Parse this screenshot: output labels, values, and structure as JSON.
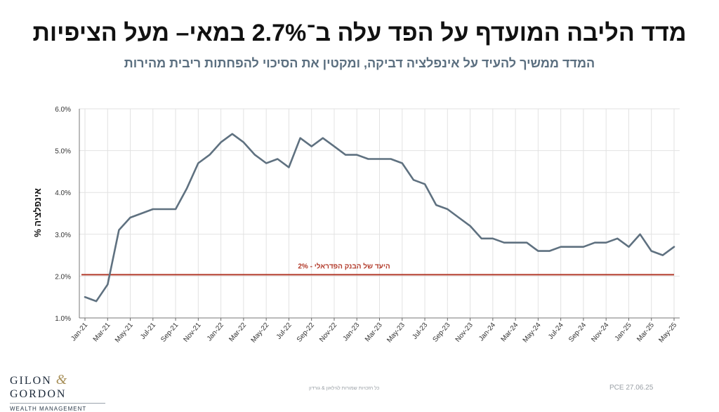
{
  "header": {
    "title": "מדד הליבה המועדף על הפד עלה ב־2.7% במאי– מעל הציפיות",
    "subtitle": "המדד ממשיך להעיד על אינפלציה דביקה, ומקטין את הסיכוי להפחתות ריבית מהירות"
  },
  "footer": {
    "logo_left": "GILON",
    "logo_amp": "&",
    "logo_right": "GORDON",
    "logo_sub": "WEALTH MANAGEMENT",
    "copyright": "כל הזכויות שמורות לגילאון & גורדון",
    "source": "PCE 27.06.25"
  },
  "colors": {
    "line": "#5f7180",
    "target": "#b23a2a",
    "grid": "#e2e2e2"
  },
  "chart_data": {
    "type": "line",
    "title": "מדד הליבה המועדף על הפד עלה ב־2.7% במאי– מעל הציפיות",
    "subtitle": "המדד ממשיך להעיד על אינפלציה דביקה, ומקטין את הסיכוי להפחתות ריבית מהירות",
    "xlabel": "",
    "ylabel": "% אינפלציה",
    "ylim": [
      1.0,
      6.0
    ],
    "yticks": [
      "1.0%",
      "2.0%",
      "3.0%",
      "4.0%",
      "5.0%",
      "6.0%"
    ],
    "grid": true,
    "x": [
      "Jan-21",
      "Feb-21",
      "Mar-21",
      "Apr-21",
      "May-21",
      "Jun-21",
      "Jul-21",
      "Aug-21",
      "Sep-21",
      "Oct-21",
      "Nov-21",
      "Dec-21",
      "Jan-22",
      "Feb-22",
      "Mar-22",
      "Apr-22",
      "May-22",
      "Jun-22",
      "Jul-22",
      "Aug-22",
      "Sep-22",
      "Oct-22",
      "Nov-22",
      "Dec-22",
      "Jan-23",
      "Feb-23",
      "Mar-23",
      "Apr-23",
      "May-23",
      "Jun-23",
      "Jul-23",
      "Aug-23",
      "Sep-23",
      "Oct-23",
      "Nov-23",
      "Dec-23",
      "Jan-24",
      "Feb-24",
      "Mar-24",
      "Apr-24",
      "May-24",
      "Jun-24",
      "Jul-24",
      "Aug-24",
      "Sep-24",
      "Oct-24",
      "Nov-24",
      "Dec-24",
      "Jan-25",
      "Feb-25",
      "Mar-25",
      "Apr-25",
      "May-25"
    ],
    "xtick_labels": [
      "Jan-21",
      "Mar-21",
      "May-21",
      "Jul-21",
      "Sep-21",
      "Nov-21",
      "Jan-22",
      "Mar-22",
      "May-22",
      "Jul-22",
      "Sep-22",
      "Nov-22",
      "Jan-23",
      "Mar-23",
      "May-23",
      "Jul-23",
      "Sep-23",
      "Nov-23",
      "Jan-24",
      "Mar-24",
      "May-24",
      "Jul-24",
      "Sep-24",
      "Nov-24",
      "Jan-25",
      "Mar-25",
      "May-25"
    ],
    "series": [
      {
        "values": [
          1.5,
          1.4,
          1.8,
          3.1,
          3.4,
          3.5,
          3.6,
          3.6,
          3.6,
          4.1,
          4.7,
          4.9,
          5.2,
          5.4,
          5.2,
          4.9,
          4.7,
          4.8,
          4.6,
          5.3,
          5.1,
          5.3,
          5.1,
          4.9,
          4.9,
          4.8,
          4.8,
          4.8,
          4.7,
          4.3,
          4.2,
          3.7,
          3.6,
          3.4,
          3.2,
          2.9,
          2.9,
          2.8,
          2.8,
          2.8,
          2.6,
          2.6,
          2.7,
          2.7,
          2.7,
          2.8,
          2.8,
          2.9,
          2.7,
          3.0,
          2.6,
          2.5,
          2.7
        ]
      }
    ],
    "reference_line": {
      "label": "היעד של הבנק הפדראלי - 2%",
      "value": 2.0
    }
  }
}
